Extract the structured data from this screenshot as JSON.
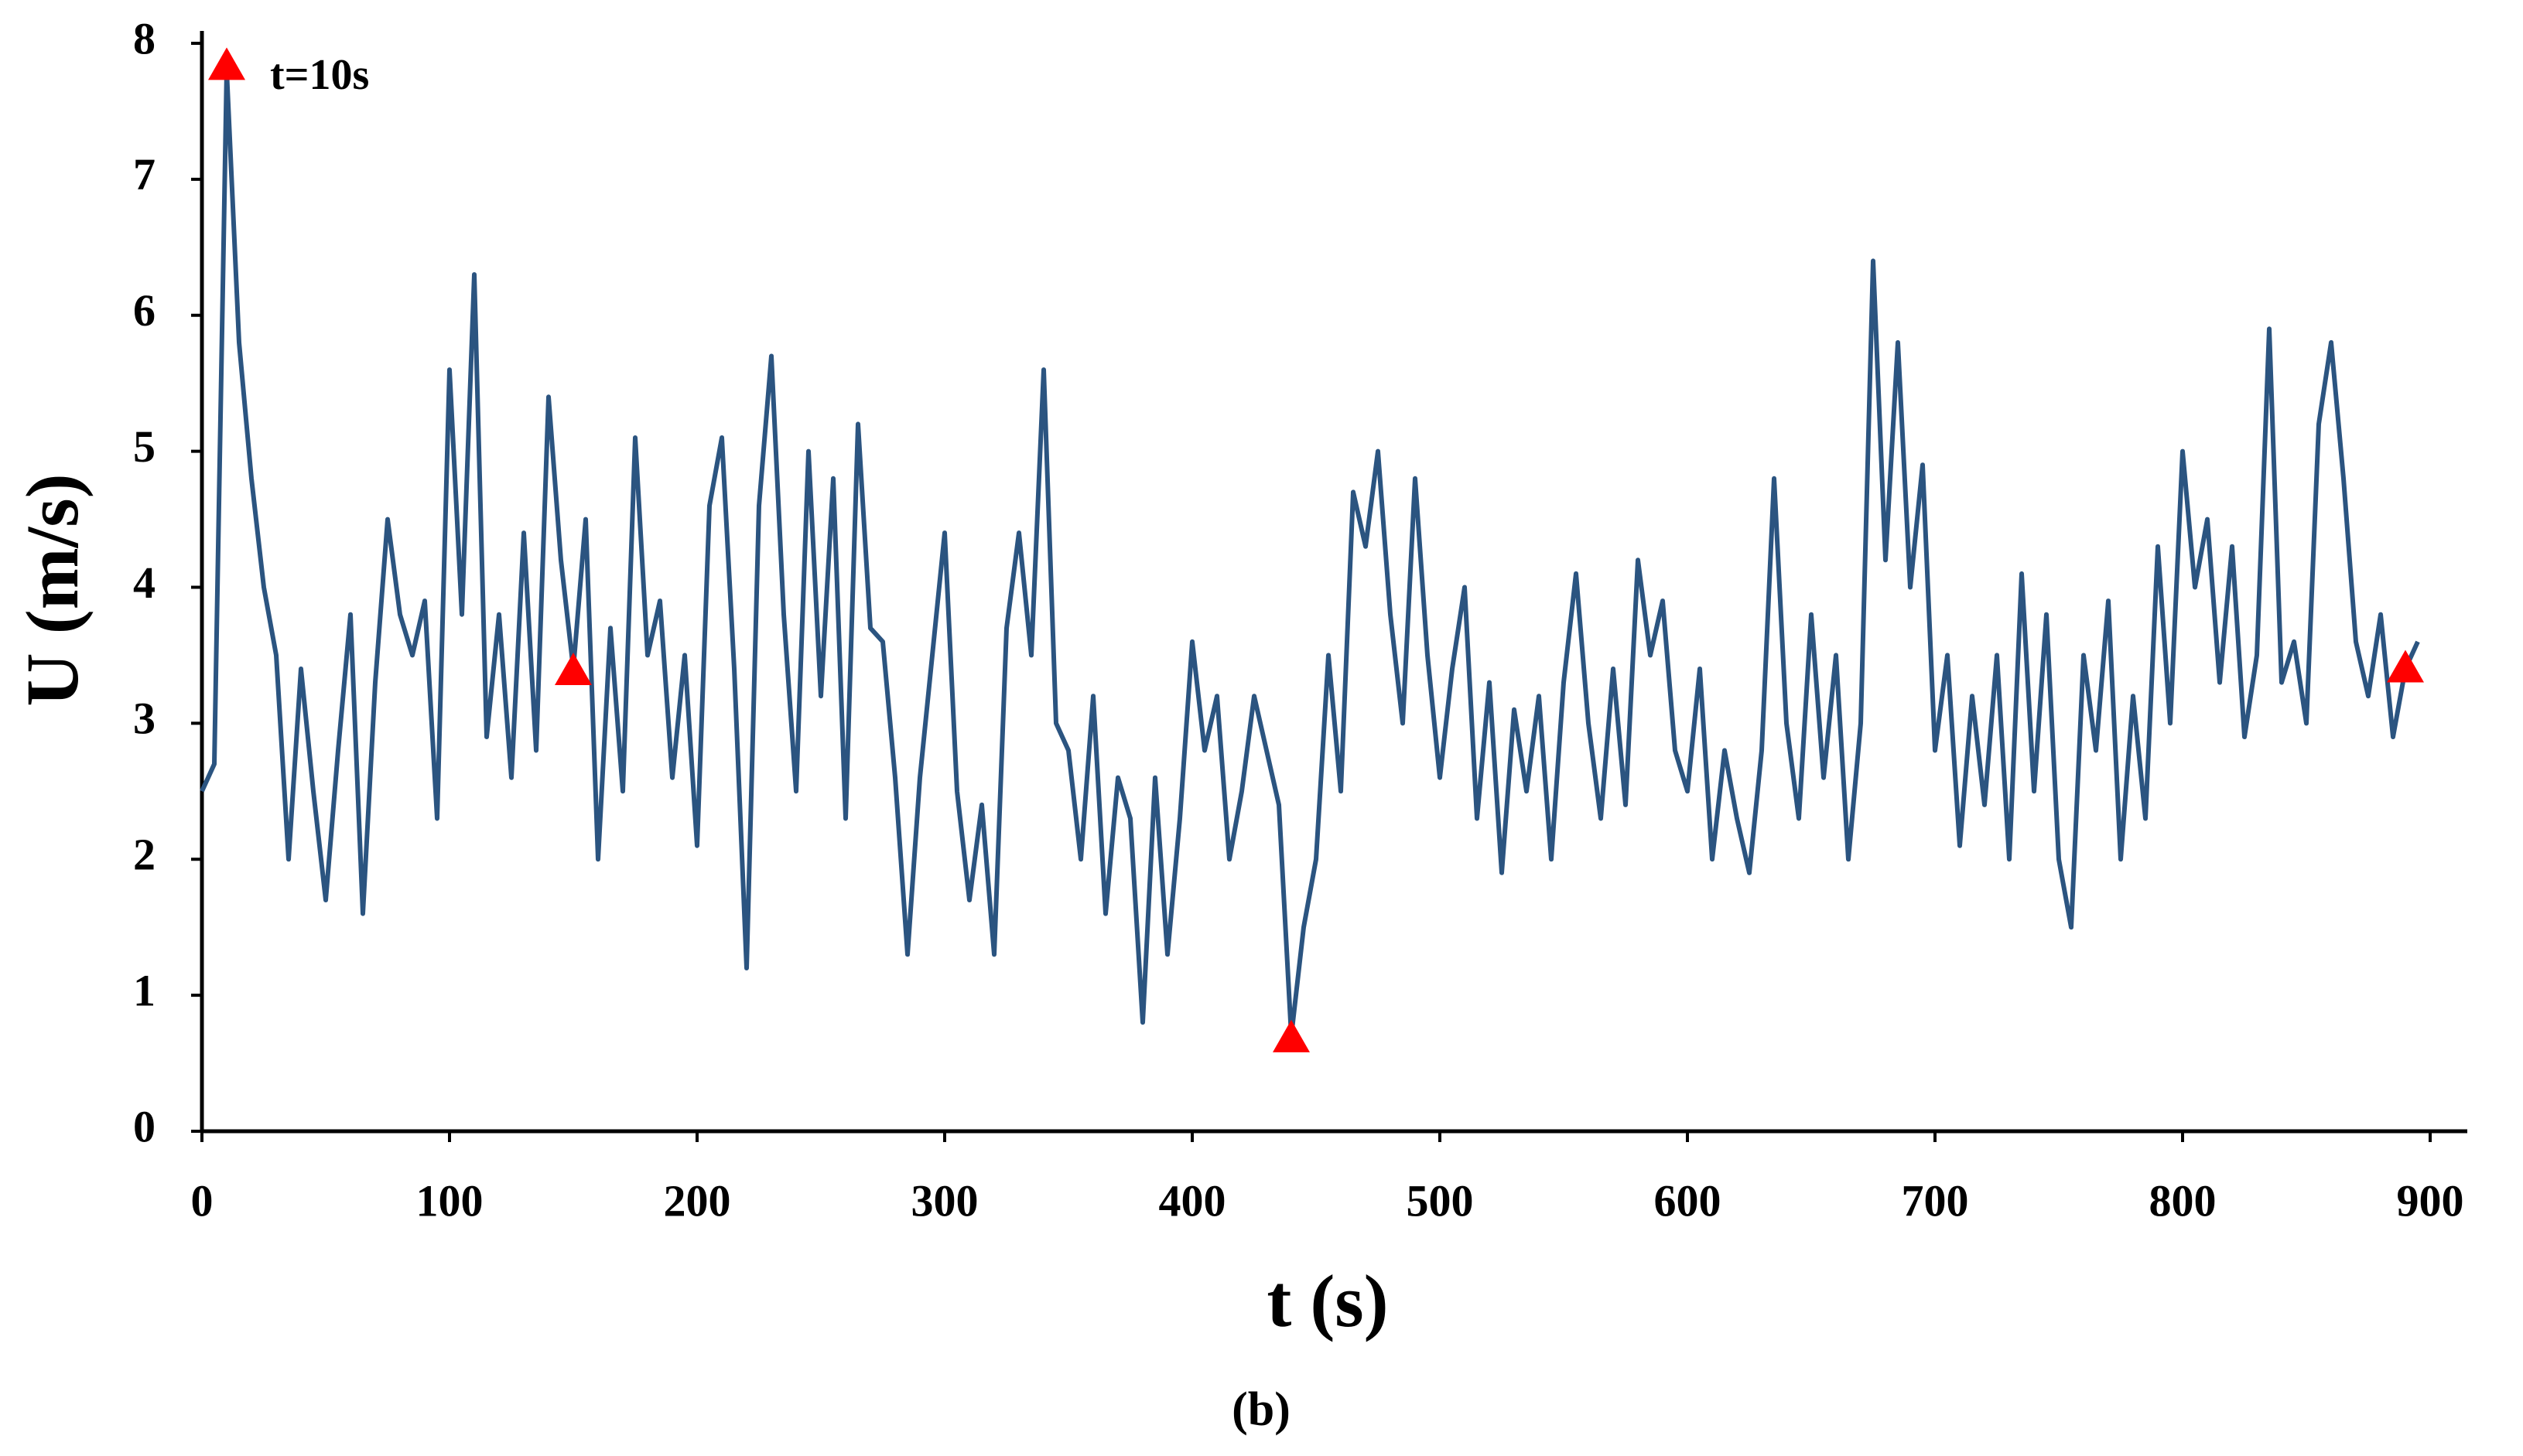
{
  "chart_data": {
    "type": "line",
    "xlabel": "t (s)",
    "ylabel": "U (m/s)",
    "caption": "(b)",
    "xlim": [
      0,
      900
    ],
    "xticks": [
      0,
      100,
      200,
      300,
      400,
      500,
      600,
      700,
      800,
      900
    ],
    "ylim": [
      0,
      8
    ],
    "yticks": [
      0,
      1,
      2,
      3,
      4,
      5,
      6,
      7,
      8
    ],
    "x": [
      0,
      5,
      10,
      15,
      20,
      25,
      30,
      35,
      40,
      45,
      50,
      55,
      60,
      65,
      70,
      75,
      80,
      85,
      90,
      95,
      100,
      105,
      110,
      115,
      120,
      125,
      130,
      135,
      140,
      145,
      150,
      155,
      160,
      165,
      170,
      175,
      180,
      185,
      190,
      195,
      200,
      205,
      210,
      215,
      220,
      225,
      230,
      235,
      240,
      245,
      250,
      255,
      260,
      265,
      270,
      275,
      280,
      285,
      290,
      295,
      300,
      305,
      310,
      315,
      320,
      325,
      330,
      335,
      340,
      345,
      350,
      355,
      360,
      365,
      370,
      375,
      380,
      385,
      390,
      395,
      400,
      405,
      410,
      415,
      420,
      425,
      430,
      435,
      440,
      445,
      450,
      455,
      460,
      465,
      470,
      475,
      480,
      485,
      490,
      495,
      500,
      505,
      510,
      515,
      520,
      525,
      530,
      535,
      540,
      545,
      550,
      555,
      560,
      565,
      570,
      575,
      580,
      585,
      590,
      595,
      600,
      605,
      610,
      615,
      620,
      625,
      630,
      635,
      640,
      645,
      650,
      655,
      660,
      665,
      670,
      675,
      680,
      685,
      690,
      695,
      700,
      705,
      710,
      715,
      720,
      725,
      730,
      735,
      740,
      745,
      750,
      755,
      760,
      765,
      770,
      775,
      780,
      785,
      790,
      795,
      800,
      805,
      810,
      815,
      820,
      825,
      830,
      835,
      840,
      845,
      850,
      855,
      860,
      865,
      870,
      875,
      880,
      885,
      890,
      895
    ],
    "series": [
      {
        "color": "#2b5480",
        "values": [
          2.5,
          2.7,
          7.8,
          5.8,
          4.8,
          4.0,
          3.5,
          2.0,
          3.4,
          2.5,
          1.7,
          2.8,
          3.8,
          1.6,
          3.3,
          4.5,
          3.8,
          3.5,
          3.9,
          2.3,
          5.6,
          3.8,
          6.3,
          2.9,
          3.8,
          2.6,
          4.4,
          2.8,
          5.4,
          4.2,
          3.4,
          4.5,
          2.0,
          3.7,
          2.5,
          5.1,
          3.5,
          3.9,
          2.6,
          3.5,
          2.1,
          4.6,
          5.1,
          3.4,
          1.2,
          4.6,
          5.7,
          3.8,
          2.5,
          5.0,
          3.2,
          4.8,
          2.3,
          5.2,
          3.7,
          3.6,
          2.6,
          1.3,
          2.6,
          3.5,
          4.4,
          2.5,
          1.7,
          2.4,
          1.3,
          3.7,
          4.4,
          3.5,
          5.6,
          3.0,
          2.8,
          2.0,
          3.2,
          1.6,
          2.6,
          2.3,
          0.8,
          2.6,
          1.3,
          2.3,
          3.6,
          2.8,
          3.2,
          2.0,
          2.5,
          3.2,
          2.8,
          2.4,
          0.7,
          1.5,
          2.0,
          3.5,
          2.5,
          4.7,
          4.3,
          5.0,
          3.8,
          3.0,
          4.8,
          3.5,
          2.6,
          3.4,
          4.0,
          2.3,
          3.3,
          1.9,
          3.1,
          2.5,
          3.2,
          2.0,
          3.3,
          4.1,
          3.0,
          2.3,
          3.4,
          2.4,
          4.2,
          3.5,
          3.9,
          2.8,
          2.5,
          3.4,
          2.0,
          2.8,
          2.3,
          1.9,
          2.8,
          4.8,
          3.0,
          2.3,
          3.8,
          2.6,
          3.5,
          2.0,
          3.0,
          6.4,
          4.2,
          5.8,
          4.0,
          4.9,
          2.8,
          3.5,
          2.1,
          3.2,
          2.4,
          3.5,
          2.0,
          4.1,
          2.5,
          3.8,
          2.0,
          1.5,
          3.5,
          2.8,
          3.9,
          2.0,
          3.2,
          2.3,
          4.3,
          3.0,
          5.0,
          4.0,
          4.5,
          3.3,
          4.3,
          2.9,
          3.5,
          5.9,
          3.3,
          3.6,
          3.0,
          5.2,
          5.8,
          4.8,
          3.6,
          3.2,
          3.8,
          2.9,
          3.4,
          3.6
        ]
      }
    ],
    "markers": {
      "color": "#ff0000",
      "x": [
        10,
        150,
        440,
        890
      ],
      "values": [
        7.85,
        3.4,
        0.7,
        3.42
      ]
    },
    "annotation": "t=10s"
  }
}
